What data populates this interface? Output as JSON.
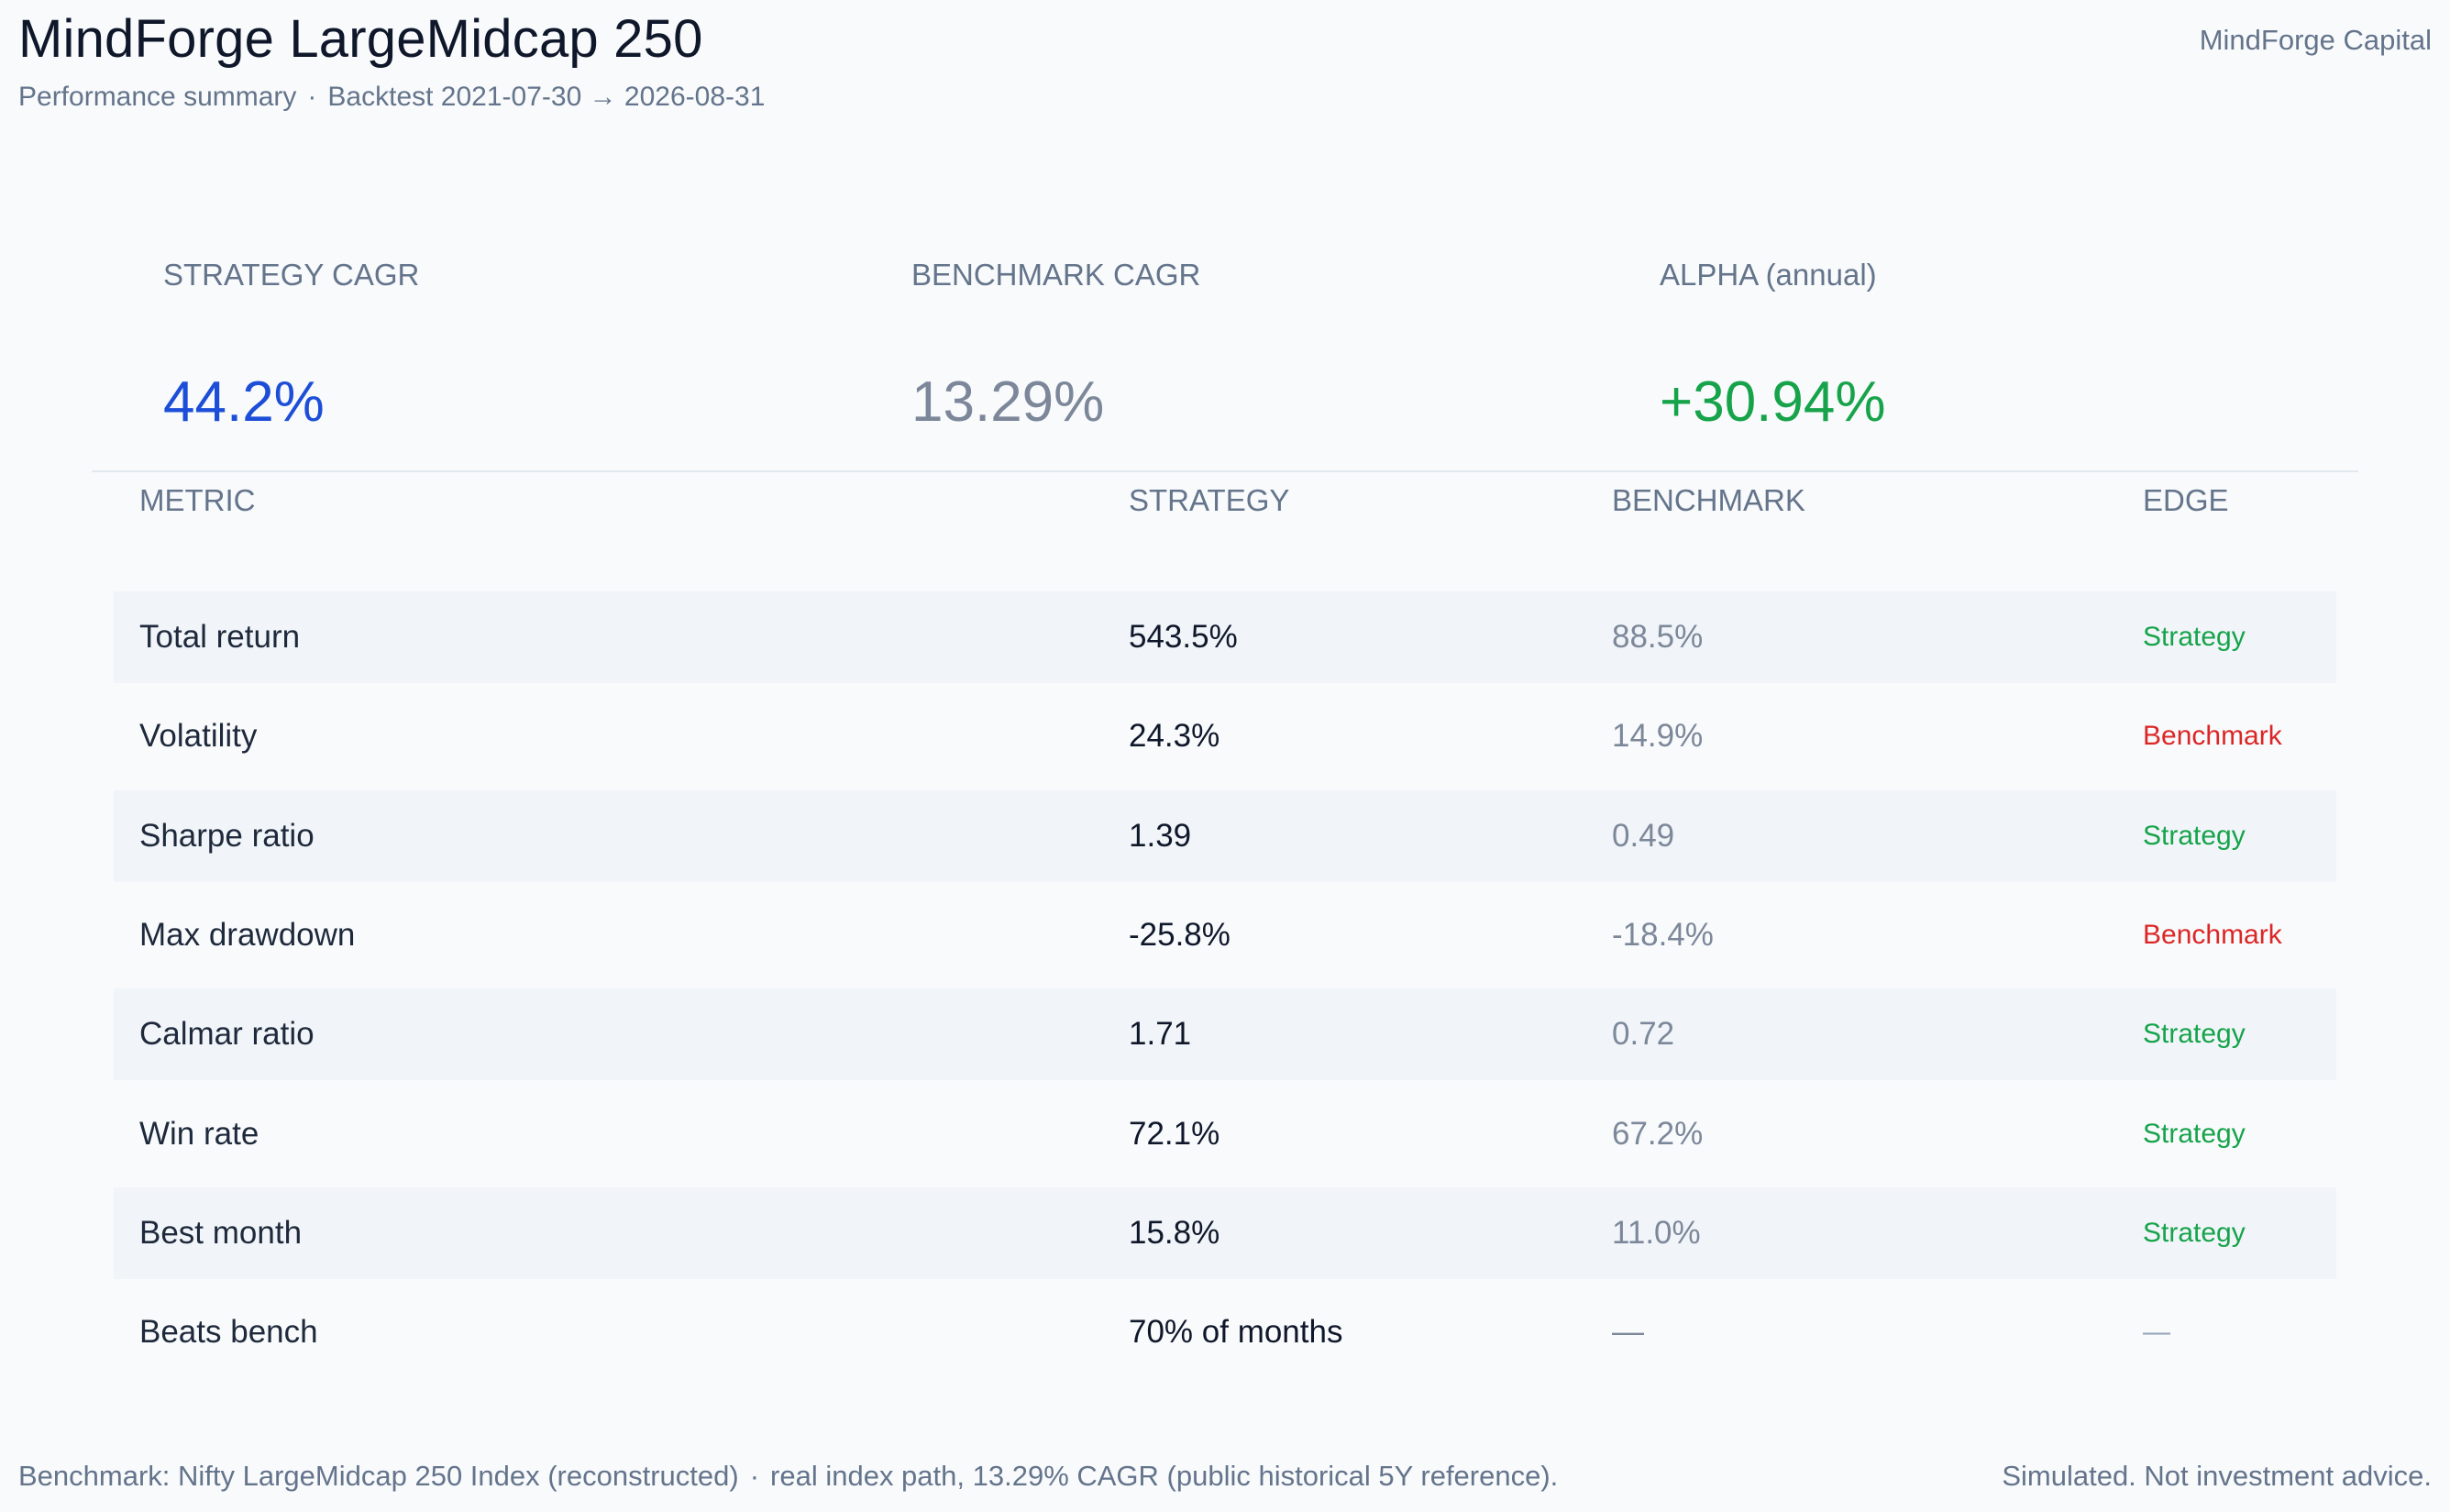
{
  "header": {
    "title": "MindForge LargeMidcap 250",
    "subtitle_left": "Performance summary",
    "subtitle_separator": "·",
    "subtitle_right": "Backtest 2021-07-30 → 2026-08-31",
    "brand": "MindForge Capital"
  },
  "kpis": [
    {
      "label": "STRATEGY CAGR",
      "value": "44.2%",
      "color": "#1d4ed8"
    },
    {
      "label": "BENCHMARK CAGR",
      "value": "13.29%",
      "color": "#7c8799"
    },
    {
      "label": "ALPHA (annual)",
      "value": "+30.94%",
      "color": "#16a34a"
    }
  ],
  "table": {
    "headers": [
      "METRIC",
      "STRATEGY",
      "BENCHMARK",
      "EDGE"
    ],
    "rows": [
      {
        "metric": "Total return",
        "strategy": "543.5%",
        "benchmark": "88.5%",
        "edge": "Strategy",
        "edge_color": "#16a34a"
      },
      {
        "metric": "Volatility",
        "strategy": "24.3%",
        "benchmark": "14.9%",
        "edge": "Benchmark",
        "edge_color": "#dc2626"
      },
      {
        "metric": "Sharpe ratio",
        "strategy": "1.39",
        "benchmark": "0.49",
        "edge": "Strategy",
        "edge_color": "#16a34a"
      },
      {
        "metric": "Max drawdown",
        "strategy": "-25.8%",
        "benchmark": "-18.4%",
        "edge": "Benchmark",
        "edge_color": "#dc2626"
      },
      {
        "metric": "Calmar ratio",
        "strategy": "1.71",
        "benchmark": "0.72",
        "edge": "Strategy",
        "edge_color": "#16a34a"
      },
      {
        "metric": "Win rate",
        "strategy": "72.1%",
        "benchmark": "67.2%",
        "edge": "Strategy",
        "edge_color": "#16a34a"
      },
      {
        "metric": "Best month",
        "strategy": "15.8%",
        "benchmark": "11.0%",
        "edge": "Strategy",
        "edge_color": "#16a34a"
      },
      {
        "metric": "Beats bench",
        "strategy": "70% of months",
        "benchmark": "—",
        "edge": "—",
        "edge_color": "#94a3b8"
      }
    ]
  },
  "footer": {
    "left_part1": "Benchmark: Nifty LargeMidcap 250 Index (reconstructed)",
    "left_separator": "·",
    "left_part2": "real index path, 13.29% CAGR (public historical 5Y reference).",
    "right": "Simulated. Not investment advice."
  }
}
